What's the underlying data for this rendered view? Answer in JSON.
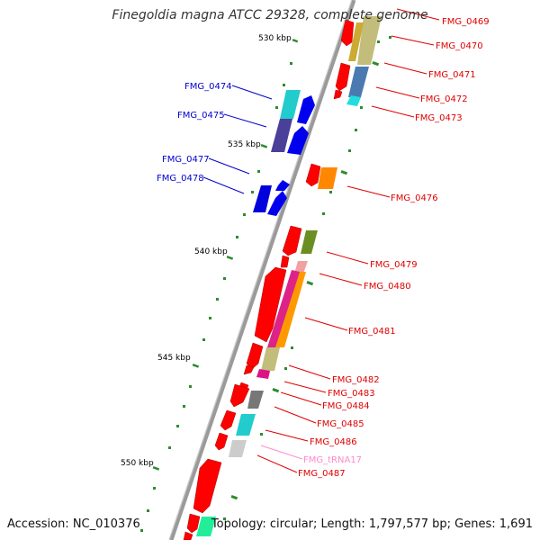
{
  "title": "Finegoldia magna ATCC 29328, complete genome",
  "accession": "Accession: NC_010376",
  "topology": "Topology: circular; Length: 1,797,577 bp; Genes: 1,691",
  "colors": {
    "backbone": "#888888",
    "forward": "#ff0000",
    "reverse_label": "#0000cc",
    "trna_label": "#ff88cc",
    "tick": "#228822"
  },
  "kbp_ticks": [
    "530 kbp",
    "535 kbp",
    "540 kbp",
    "545 kbp",
    "550 kbp"
  ],
  "gene_labels_right": [
    {
      "name": "FMG_0469",
      "color": "#e00000"
    },
    {
      "name": "FMG_0470",
      "color": "#e00000"
    },
    {
      "name": "FMG_0471",
      "color": "#e00000"
    },
    {
      "name": "FMG_0472",
      "color": "#e00000"
    },
    {
      "name": "FMG_0473",
      "color": "#e00000"
    },
    {
      "name": "FMG_0476",
      "color": "#e00000"
    },
    {
      "name": "FMG_0479",
      "color": "#e00000"
    },
    {
      "name": "FMG_0480",
      "color": "#e00000"
    },
    {
      "name": "FMG_0481",
      "color": "#e00000"
    },
    {
      "name": "FMG_0482",
      "color": "#e00000"
    },
    {
      "name": "FMG_0483",
      "color": "#e00000"
    },
    {
      "name": "FMG_0484",
      "color": "#e00000"
    },
    {
      "name": "FMG_0485",
      "color": "#e00000"
    },
    {
      "name": "FMG_0486",
      "color": "#e00000"
    },
    {
      "name": "FMG_tRNA17",
      "color": "#ff88cc"
    },
    {
      "name": "FMG_0487",
      "color": "#e00000"
    }
  ],
  "gene_labels_left": [
    {
      "name": "FMG_0474",
      "color": "#0000cc"
    },
    {
      "name": "FMG_0475",
      "color": "#0000cc"
    },
    {
      "name": "FMG_0477",
      "color": "#0000cc"
    },
    {
      "name": "FMG_0478",
      "color": "#0000cc"
    }
  ]
}
